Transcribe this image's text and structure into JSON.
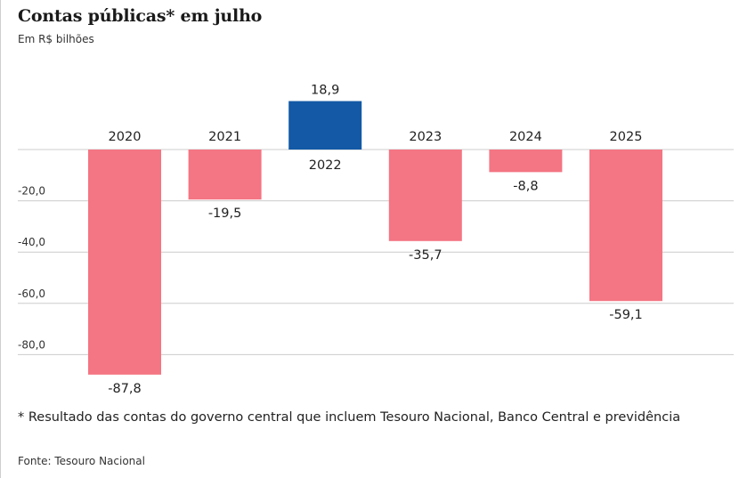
{
  "header": {
    "title": "Contas públicas* em julho",
    "subtitle": "Em R$ bilhões"
  },
  "footer": {
    "footnote": "* Resultado das contas do governo central que incluem Tesouro Nacional, Banco Central e previdência",
    "source": "Fonte: Tesouro Nacional"
  },
  "colors": {
    "negative": "#f47583",
    "positive": "#1359a6",
    "grid": "#cccccc",
    "text": "#222222"
  },
  "chart_data": {
    "type": "bar",
    "title": "Contas públicas* em julho",
    "subtitle": "Em R$ bilhões",
    "xlabel": "",
    "ylabel": "",
    "categories": [
      "2020",
      "2021",
      "2022",
      "2023",
      "2024",
      "2025"
    ],
    "values": [
      -87.8,
      -19.5,
      18.9,
      -35.7,
      -8.8,
      -59.1
    ],
    "value_labels": [
      "-87,8",
      "-19,5",
      "18,9",
      "-35,7",
      "-8,8",
      "-59,1"
    ],
    "yticks": [
      -20,
      -40,
      -60,
      -80
    ],
    "ytick_labels": [
      "-20,0",
      "-40,0",
      "-60,0",
      "-80,0"
    ],
    "ylim": [
      -90,
      20
    ],
    "grid": true,
    "legend": "none"
  }
}
